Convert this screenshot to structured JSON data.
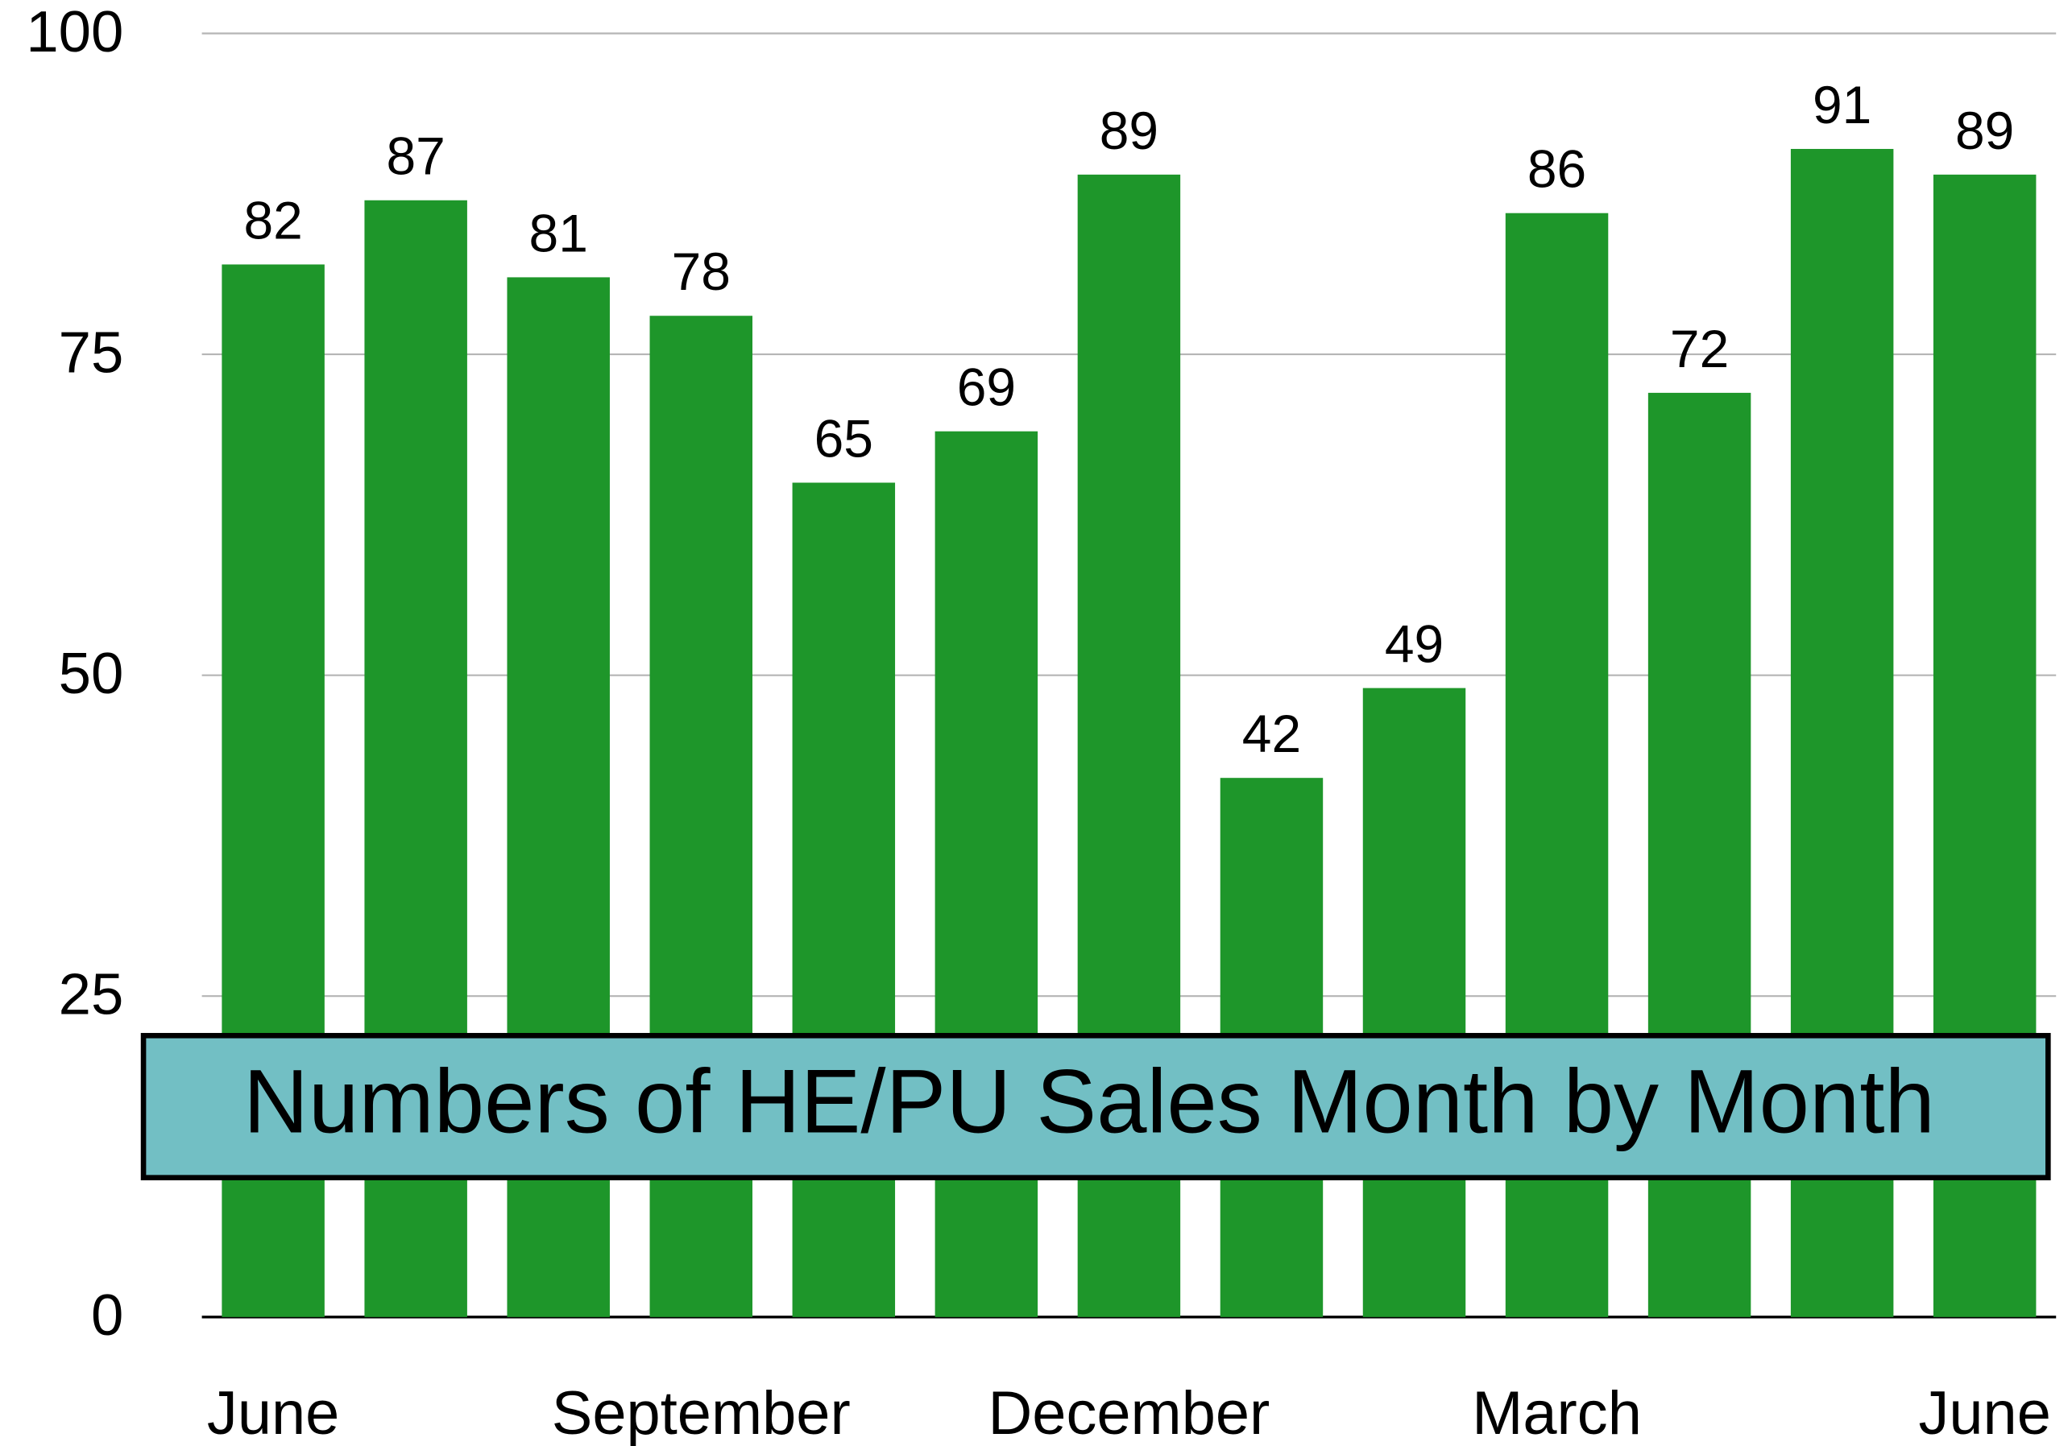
{
  "chart_data": {
    "type": "bar",
    "title": "Numbers of HE/PU Sales Month by Month",
    "categories": [
      "June",
      null,
      null,
      "September",
      null,
      null,
      "December",
      null,
      null,
      "March",
      null,
      null,
      "June"
    ],
    "values": [
      82,
      87,
      81,
      78,
      65,
      69,
      89,
      42,
      49,
      86,
      72,
      91,
      89
    ],
    "color": "#1e962a",
    "ylim": [
      0,
      100
    ],
    "yticks": [
      0,
      25,
      50,
      75,
      100
    ],
    "grid": true
  }
}
